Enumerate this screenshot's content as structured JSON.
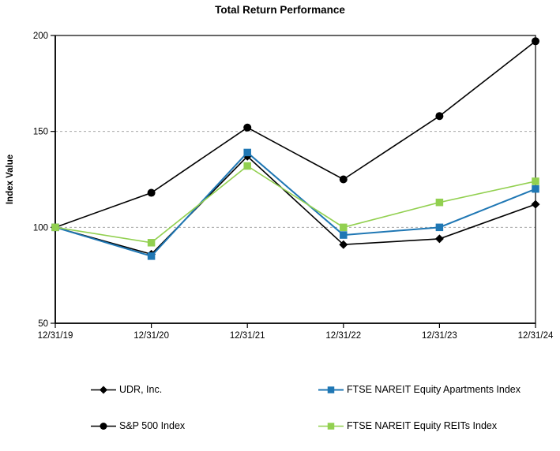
{
  "chart_data": {
    "type": "line",
    "title": "Total Return Performance",
    "ylabel": "Index Value",
    "xlabel": "",
    "x_categories": [
      "12/31/19",
      "12/31/20",
      "12/31/21",
      "12/31/22",
      "12/31/23",
      "12/31/24"
    ],
    "ylim": [
      50,
      200
    ],
    "y_ticks": [
      50,
      100,
      150,
      200
    ],
    "gridlines_at": [
      100,
      150
    ],
    "grid": "horizontal-dashed",
    "legend_position": "bottom-two-columns",
    "series": [
      {
        "id": "udr",
        "name": "UDR, Inc.",
        "color": "#000000",
        "marker": "diamond",
        "line_width": 1.6,
        "values": [
          100,
          86,
          137,
          91,
          94,
          112
        ]
      },
      {
        "id": "apartments",
        "name": "FTSE NAREIT Equity Apartments Index",
        "color": "#1f77b4",
        "marker": "square",
        "line_width": 2,
        "values": [
          100,
          85,
          139,
          96,
          100,
          120
        ]
      },
      {
        "id": "sp500",
        "name": "S&P 500 Index",
        "color": "#000000",
        "marker": "circle",
        "line_width": 1.6,
        "values": [
          100,
          118,
          152,
          125,
          158,
          197
        ]
      },
      {
        "id": "reits",
        "name": "FTSE NAREIT Equity REITs Index",
        "color": "#92d050",
        "marker": "square",
        "line_width": 1.6,
        "values": [
          100,
          92,
          132,
          100,
          113,
          124
        ]
      }
    ]
  }
}
